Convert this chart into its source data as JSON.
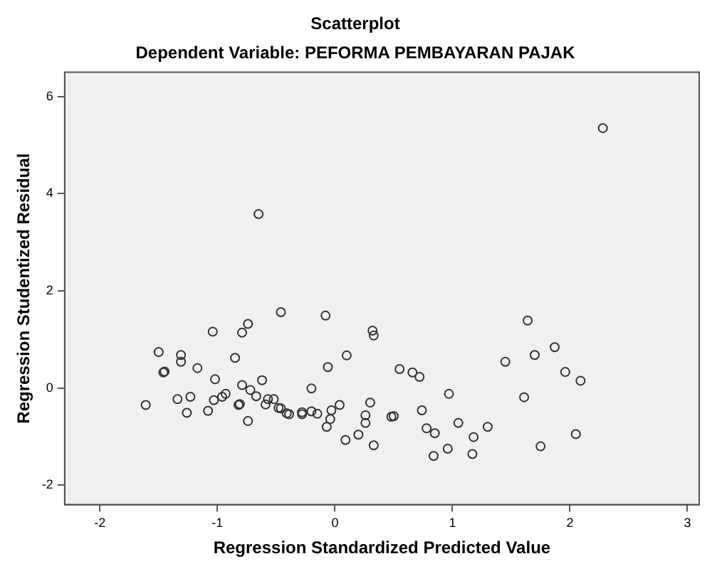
{
  "chart_data": {
    "type": "scatter",
    "title": "Scatterplot",
    "subtitle": "Dependent Variable: PEFORMA PEMBAYARAN PAJAK",
    "xlabel": "Regression Standardized Predicted Value",
    "ylabel": "Regression Studentized Residual",
    "xlim": [
      -2.3,
      3.1
    ],
    "xticks": [
      -2,
      -1,
      0,
      1,
      2,
      3
    ],
    "ylim": [
      -2.4,
      6.5
    ],
    "yticks": [
      -2,
      0,
      2,
      4,
      6
    ],
    "grid": false,
    "legend": false,
    "marker": "circle",
    "series": [
      {
        "color": "#333333",
        "x": [
          -1.61,
          -1.5,
          -1.46,
          -1.45,
          -1.31,
          -1.31,
          -1.34,
          -1.23,
          -1.26,
          -1.17,
          -1.04,
          -1.02,
          -1.03,
          -1.08,
          -0.96,
          -0.93,
          -0.85,
          -0.79,
          -0.74,
          -0.82,
          -0.81,
          -0.74,
          -0.79,
          -0.72,
          -0.67,
          -0.62,
          -0.59,
          -0.57,
          -0.52,
          -0.48,
          -0.46,
          -0.65,
          -0.08,
          -0.46,
          -0.41,
          -0.39,
          -0.28,
          -0.28,
          -0.2,
          -0.2,
          -0.15,
          -0.06,
          -0.07,
          -0.04,
          -0.03,
          0.04,
          0.1,
          0.09,
          0.2,
          0.26,
          0.26,
          0.3,
          0.32,
          0.33,
          0.33,
          0.48,
          0.5,
          0.55,
          0.66,
          0.72,
          0.74,
          0.78,
          0.85,
          0.97,
          0.84,
          0.96,
          1.05,
          1.18,
          1.17,
          1.3,
          1.64,
          1.45,
          1.7,
          1.87,
          1.96,
          2.09,
          1.61,
          2.05,
          1.75,
          2.28
        ],
        "values": [
          -0.35,
          0.74,
          0.32,
          0.34,
          0.68,
          0.54,
          -0.23,
          -0.18,
          -0.51,
          0.41,
          1.16,
          0.18,
          -0.25,
          -0.47,
          -0.18,
          -0.12,
          0.62,
          1.14,
          1.32,
          -0.35,
          -0.33,
          -0.68,
          0.06,
          -0.04,
          -0.17,
          0.16,
          -0.34,
          -0.23,
          -0.23,
          -0.41,
          1.56,
          3.58,
          1.49,
          -0.42,
          -0.52,
          -0.54,
          -0.54,
          -0.5,
          -0.01,
          -0.48,
          -0.53,
          0.43,
          -0.8,
          -0.64,
          -0.46,
          -0.35,
          0.67,
          -1.07,
          -0.96,
          -0.56,
          -0.72,
          -0.3,
          1.18,
          1.08,
          -1.18,
          -0.59,
          -0.58,
          0.39,
          0.32,
          0.23,
          -0.46,
          -0.83,
          -0.93,
          -0.12,
          -1.4,
          -1.25,
          -0.72,
          -1.01,
          -1.36,
          -0.8,
          1.39,
          0.54,
          0.68,
          0.84,
          0.33,
          0.15,
          -0.19,
          -0.95,
          -1.2,
          5.35
        ]
      }
    ]
  }
}
